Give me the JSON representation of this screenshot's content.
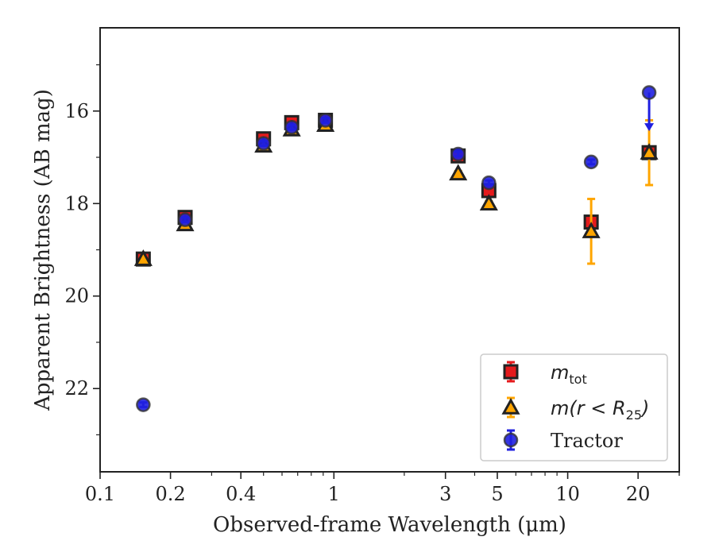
{
  "chart_data": {
    "type": "scatter",
    "title": "",
    "xlabel": "Observed-frame Wavelength (μm)",
    "ylabel": "Apparent Brightness (AB mag)",
    "xscale": "log",
    "xlim": [
      0.1,
      30
    ],
    "ylim": [
      23.8,
      14.2
    ],
    "y_inverted": true,
    "xticks": [
      0.1,
      0.2,
      0.4,
      1,
      3,
      5,
      10,
      20
    ],
    "xtick_labels": [
      "0.1",
      "0.2",
      "0.4",
      "1",
      "3",
      "5",
      "10",
      "20"
    ],
    "yticks": [
      16,
      18,
      20,
      22
    ],
    "ytick_labels": [
      "16",
      "18",
      "20",
      "22"
    ],
    "legend_position": "lower-right",
    "series": [
      {
        "name": "m_tot",
        "color": "#e41a1c",
        "marker": "square",
        "points": [
          {
            "x": 0.153,
            "y": 19.2,
            "err": 0.05
          },
          {
            "x": 0.231,
            "y": 18.3,
            "err": 0.05
          },
          {
            "x": 0.5,
            "y": 16.6,
            "err": 0.05
          },
          {
            "x": 0.66,
            "y": 16.25,
            "err": 0.05
          },
          {
            "x": 0.92,
            "y": 16.2,
            "err": 0.05
          },
          {
            "x": 3.4,
            "y": 16.97,
            "err": 0.05
          },
          {
            "x": 4.6,
            "y": 17.72,
            "err": 0.05
          },
          {
            "x": 12.6,
            "y": 18.4,
            "err": 0.05
          },
          {
            "x": 22.3,
            "y": 16.9,
            "err": 0.05
          }
        ]
      },
      {
        "name": "m(r < R25)",
        "color": "#ffa500",
        "marker": "triangle",
        "points": [
          {
            "x": 0.153,
            "y": 19.2,
            "err": 0.05
          },
          {
            "x": 0.231,
            "y": 18.45,
            "err": 0.05
          },
          {
            "x": 0.5,
            "y": 16.75,
            "err": 0.05
          },
          {
            "x": 0.66,
            "y": 16.4,
            "err": 0.05
          },
          {
            "x": 0.92,
            "y": 16.3,
            "err": 0.05
          },
          {
            "x": 3.4,
            "y": 17.35,
            "err": 0.05
          },
          {
            "x": 4.6,
            "y": 18.0,
            "err": 0.05
          },
          {
            "x": 12.6,
            "y": 18.6,
            "err": 0.7
          },
          {
            "x": 22.3,
            "y": 16.9,
            "err": 0.7
          }
        ]
      },
      {
        "name": "Tractor",
        "color": "#1f1fe0",
        "marker": "circle",
        "points": [
          {
            "x": 0.153,
            "y": 22.35,
            "err": 0.05
          },
          {
            "x": 0.231,
            "y": 18.35,
            "err": 0.05
          },
          {
            "x": 0.5,
            "y": 16.7,
            "err": 0.05
          },
          {
            "x": 0.66,
            "y": 16.35,
            "err": 0.05
          },
          {
            "x": 0.92,
            "y": 16.2,
            "err": 0.05
          },
          {
            "x": 3.4,
            "y": 16.93,
            "err": 0.05
          },
          {
            "x": 4.6,
            "y": 17.55,
            "err": 0.05
          },
          {
            "x": 12.6,
            "y": 17.1,
            "err": 0.05
          },
          {
            "x": 22.3,
            "y": 15.6,
            "err": 0.05,
            "upper_limit_to": 16.4
          }
        ]
      }
    ]
  }
}
